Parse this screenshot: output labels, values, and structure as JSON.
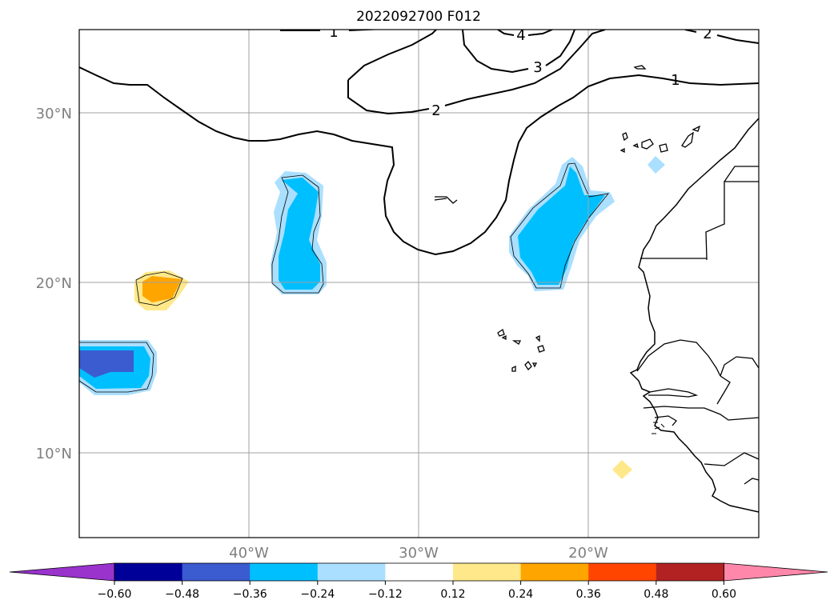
{
  "title": "2022092700 F012",
  "lat_labels": [
    "30°N",
    "20°N",
    "10°N"
  ],
  "lon_labels": [
    "40°W",
    "30°W",
    "20°W"
  ],
  "contour_labels": [
    "1",
    "4",
    "2",
    "3",
    "2",
    "1"
  ],
  "colorbar": {
    "ticks": [
      "−0.60",
      "−0.48",
      "−0.36",
      "−0.24",
      "−0.12",
      "0.12",
      "0.24",
      "0.36",
      "0.48",
      "0.60"
    ],
    "colors": [
      "#9933cc",
      "#000099",
      "#3b5bd1",
      "#00bfff",
      "#aadfff",
      "#ffffff",
      "#ffe88a",
      "#ffa500",
      "#ff4500",
      "#b22222",
      "#ff88aa"
    ]
  },
  "map": {
    "extent_lon": [
      -50,
      -10
    ],
    "extent_lat": [
      5,
      35
    ],
    "gridlines": true,
    "colors": {
      "light_blue": "#aadfff",
      "blue": "#00bfff",
      "royal_blue": "#3b5bd1",
      "light_yellow": "#ffe88a",
      "orange": "#ffa500"
    }
  }
}
